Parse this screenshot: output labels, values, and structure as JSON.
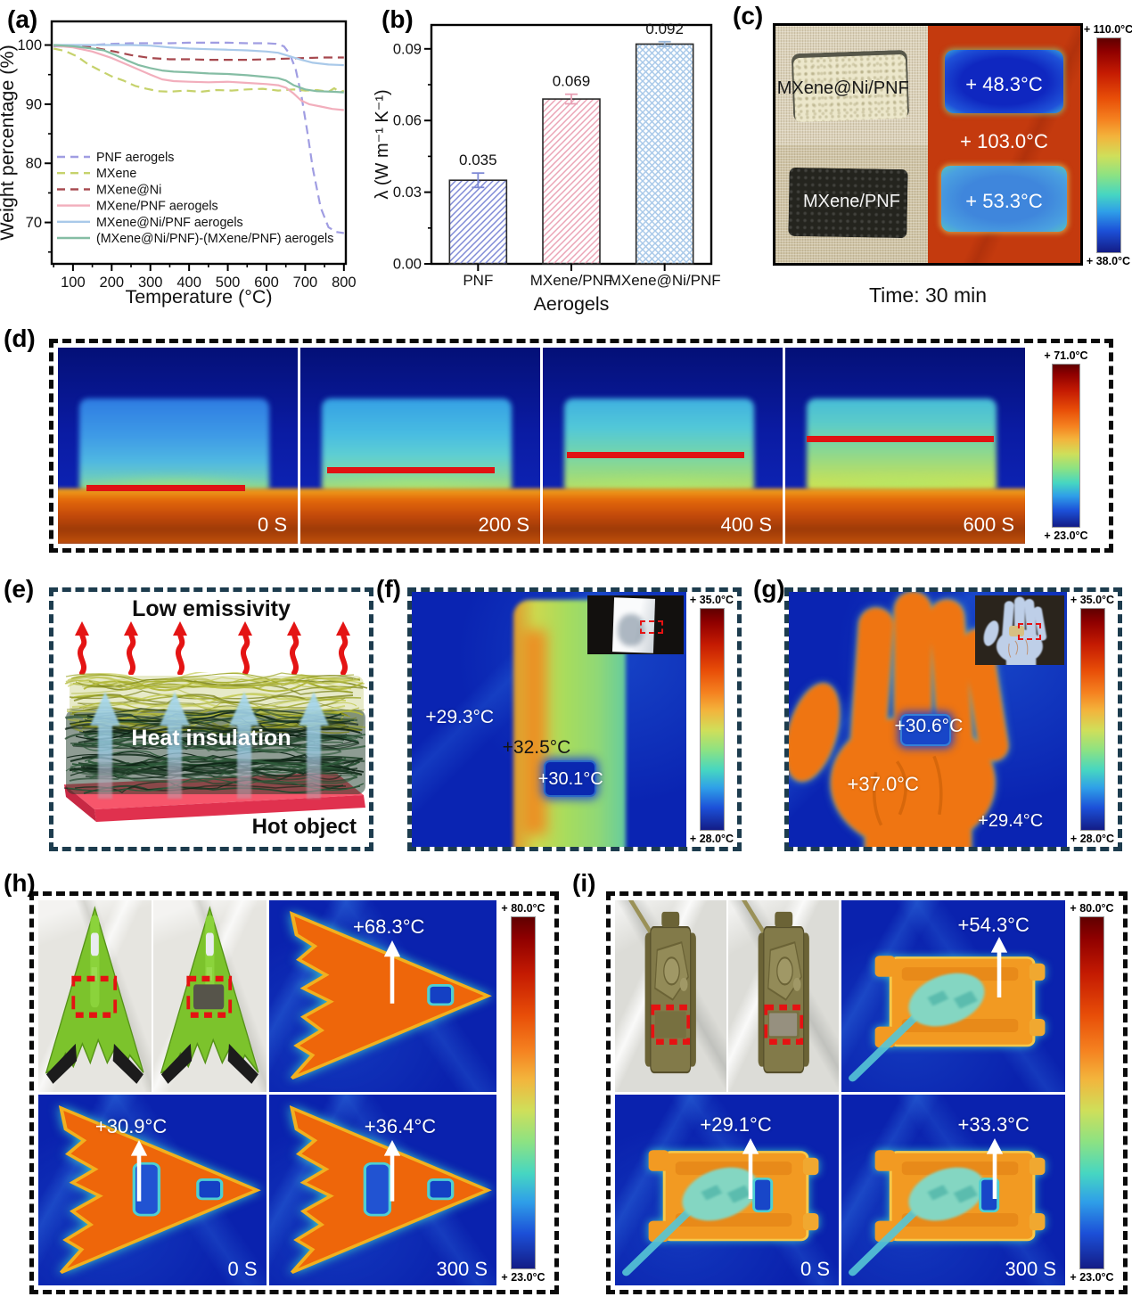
{
  "chart_data": [
    {
      "panel_label": "(a)",
      "type": "line",
      "title": "",
      "xlabel": "Temperature (°C)",
      "ylabel": "Weight percentage (%)",
      "xlim": [
        45,
        805
      ],
      "ylim": [
        63,
        104
      ],
      "xticks": [
        100,
        200,
        300,
        400,
        500,
        600,
        700,
        800
      ],
      "yticks": [
        70,
        80,
        90,
        100
      ],
      "grid": false,
      "legend_position": "lower left",
      "series": [
        {
          "name": "PNF aerogels",
          "color": "#a09de2",
          "dash": "dashed",
          "x": [
            50,
            100,
            150,
            200,
            250,
            300,
            350,
            400,
            450,
            500,
            550,
            600,
            625,
            645,
            660,
            675,
            690,
            705,
            720,
            740,
            760,
            780,
            800
          ],
          "y": [
            99.8,
            99.7,
            100.0,
            100.2,
            100.3,
            100.3,
            100.3,
            100.4,
            100.4,
            100.4,
            100.3,
            100.3,
            100.2,
            99.8,
            98.5,
            96.0,
            91.5,
            85.5,
            79.0,
            72.5,
            69.2,
            68.4,
            68.2
          ]
        },
        {
          "name": "MXene",
          "color": "#c6d26c",
          "dash": "dashed",
          "x": [
            50,
            80,
            110,
            140,
            170,
            200,
            230,
            260,
            290,
            320,
            350,
            390,
            430,
            470,
            510,
            550,
            590,
            630,
            670,
            700,
            730,
            760,
            775,
            790,
            800
          ],
          "y": [
            99.4,
            99.0,
            98.1,
            96.7,
            95.7,
            94.7,
            94.0,
            93.1,
            92.6,
            92.2,
            92.1,
            92.3,
            92.1,
            92.4,
            92.3,
            92.5,
            92.6,
            92.3,
            92.5,
            92.3,
            92.4,
            92.1,
            92.7,
            92.0,
            92.3
          ]
        },
        {
          "name": "MXene@Ni",
          "color": "#a6484e",
          "dash": "dashed",
          "x": [
            50,
            100,
            150,
            200,
            250,
            300,
            350,
            400,
            450,
            500,
            550,
            600,
            650,
            700,
            750,
            800
          ],
          "y": [
            99.9,
            99.8,
            99.6,
            99.0,
            98.3,
            97.8,
            97.6,
            97.6,
            97.5,
            97.5,
            97.5,
            97.6,
            97.7,
            97.8,
            97.9,
            97.9
          ]
        },
        {
          "name": "MXene/PNF aerogels",
          "color": "#f2aebc",
          "dash": "solid",
          "x": [
            50,
            100,
            150,
            200,
            250,
            300,
            330,
            360,
            400,
            450,
            500,
            550,
            600,
            630,
            650,
            670,
            690,
            710,
            740,
            770,
            800
          ],
          "y": [
            99.9,
            99.6,
            98.9,
            97.8,
            96.4,
            95.0,
            94.2,
            93.9,
            93.8,
            93.7,
            93.8,
            93.6,
            93.4,
            93.2,
            92.8,
            91.8,
            90.6,
            90.0,
            89.6,
            89.2,
            89.0
          ]
        },
        {
          "name": "MXene@Ni/PNF aerogels",
          "color": "#a9c9e9",
          "dash": "solid",
          "x": [
            50,
            100,
            150,
            200,
            250,
            300,
            350,
            400,
            450,
            500,
            550,
            600,
            630,
            650,
            670,
            690,
            720,
            760,
            800
          ],
          "y": [
            100.0,
            100.0,
            100.0,
            100.0,
            100.0,
            99.9,
            99.6,
            99.4,
            99.3,
            99.2,
            99.1,
            98.9,
            98.7,
            98.3,
            97.9,
            97.5,
            97.0,
            96.7,
            96.6
          ]
        },
        {
          "name": "(MXene@Ni/PNF)-(MXene/PNF) aerogels",
          "color": "#85bda4",
          "dash": "solid",
          "x": [
            50,
            100,
            150,
            180,
            210,
            240,
            270,
            300,
            330,
            360,
            400,
            450,
            500,
            550,
            600,
            630,
            650,
            670,
            700,
            730,
            770,
            800
          ],
          "y": [
            100.0,
            99.8,
            99.4,
            99.1,
            98.3,
            97.4,
            96.6,
            96.1,
            95.7,
            95.5,
            95.4,
            95.2,
            95.1,
            94.9,
            94.6,
            94.4,
            94.0,
            93.2,
            92.5,
            92.2,
            92.1,
            92.0
          ]
        }
      ]
    },
    {
      "panel_label": "(b)",
      "type": "bar",
      "categories": [
        "PNF",
        "MXene/PNF",
        "MXene@Ni/PNF"
      ],
      "values": [
        0.035,
        0.069,
        0.092
      ],
      "errors": [
        0.003,
        0.002,
        0.001
      ],
      "value_labels": [
        "0.035",
        "0.069",
        "0.092"
      ],
      "xlabel": "Aerogels",
      "ylabel": "λ (W m⁻¹ K⁻¹)",
      "ylim": [
        0,
        0.1
      ],
      "ytick_values": [
        0,
        0.03,
        0.06,
        0.09
      ],
      "yticks": [
        "0.00",
        "0.03",
        "0.06",
        "0.09"
      ],
      "grid": false,
      "hatches": [
        "//",
        "//",
        "xx"
      ],
      "hatch_colors": [
        "#7f8ad6",
        "#eba4b6",
        "#a9c9e9"
      ],
      "error_colors": [
        "#7f8ad6",
        "#e8a0b4",
        "#9ab8d8"
      ]
    }
  ],
  "panel_c": {
    "label": "(c)",
    "sample_top_label": "MXene@Ni/PNF",
    "sample_bottom_label": "MXene/PNF",
    "temp_top": "+ 48.3°C",
    "temp_middle": "+ 103.0°C",
    "temp_bottom": "+ 53.3°C",
    "colorbar_max": "+ 110.0°C",
    "colorbar_min": "+ 38.0°C",
    "caption": "Time: 30 min"
  },
  "panel_d": {
    "label": "(d)",
    "times": [
      "0 S",
      "200 S",
      "400 S",
      "600 S"
    ],
    "colorbar_max": "+ 71.0°C",
    "colorbar_min": "+ 23.0°C"
  },
  "panel_e": {
    "label": "(e)",
    "top_text": "Low emissivity",
    "middle_text": "Heat insulation",
    "bottom_text": "Hot object"
  },
  "panel_f": {
    "label": "(f)",
    "temp_background": "+29.3°C",
    "temp_film": "+32.5°C",
    "temp_patch": "+30.1°C",
    "colorbar_max": "+ 35.0°C",
    "colorbar_min": "+ 28.0°C"
  },
  "panel_g": {
    "label": "(g)",
    "temp_patch": "+30.6°C",
    "temp_hand": "+37.0°C",
    "temp_background": "+29.4°C",
    "colorbar_max": "+ 35.0°C",
    "colorbar_min": "+ 28.0°C"
  },
  "panel_h": {
    "label": "(h)",
    "temp_no_film": "+68.3°C",
    "temp_film_0s": "+30.9°C",
    "temp_film_300s": "+36.4°C",
    "time_0": "0 S",
    "time_300": "300 S",
    "colorbar_max": "+ 80.0°C",
    "colorbar_min": "+ 23.0°C"
  },
  "panel_i": {
    "label": "(i)",
    "temp_no_film": "+54.3°C",
    "temp_film_0s": "+29.1°C",
    "temp_film_300s": "+33.3°C",
    "time_0": "0 S",
    "time_300": "300 S",
    "colorbar_max": "+ 80.0°C",
    "colorbar_min": "+ 23.0°C"
  },
  "colors": {
    "thermal_hot": "#ee660a",
    "thermal_cold": "#0a24b4",
    "red_line": "#e01212",
    "annotation_red": "#e51212",
    "teal_border": "#1d3c4e"
  }
}
